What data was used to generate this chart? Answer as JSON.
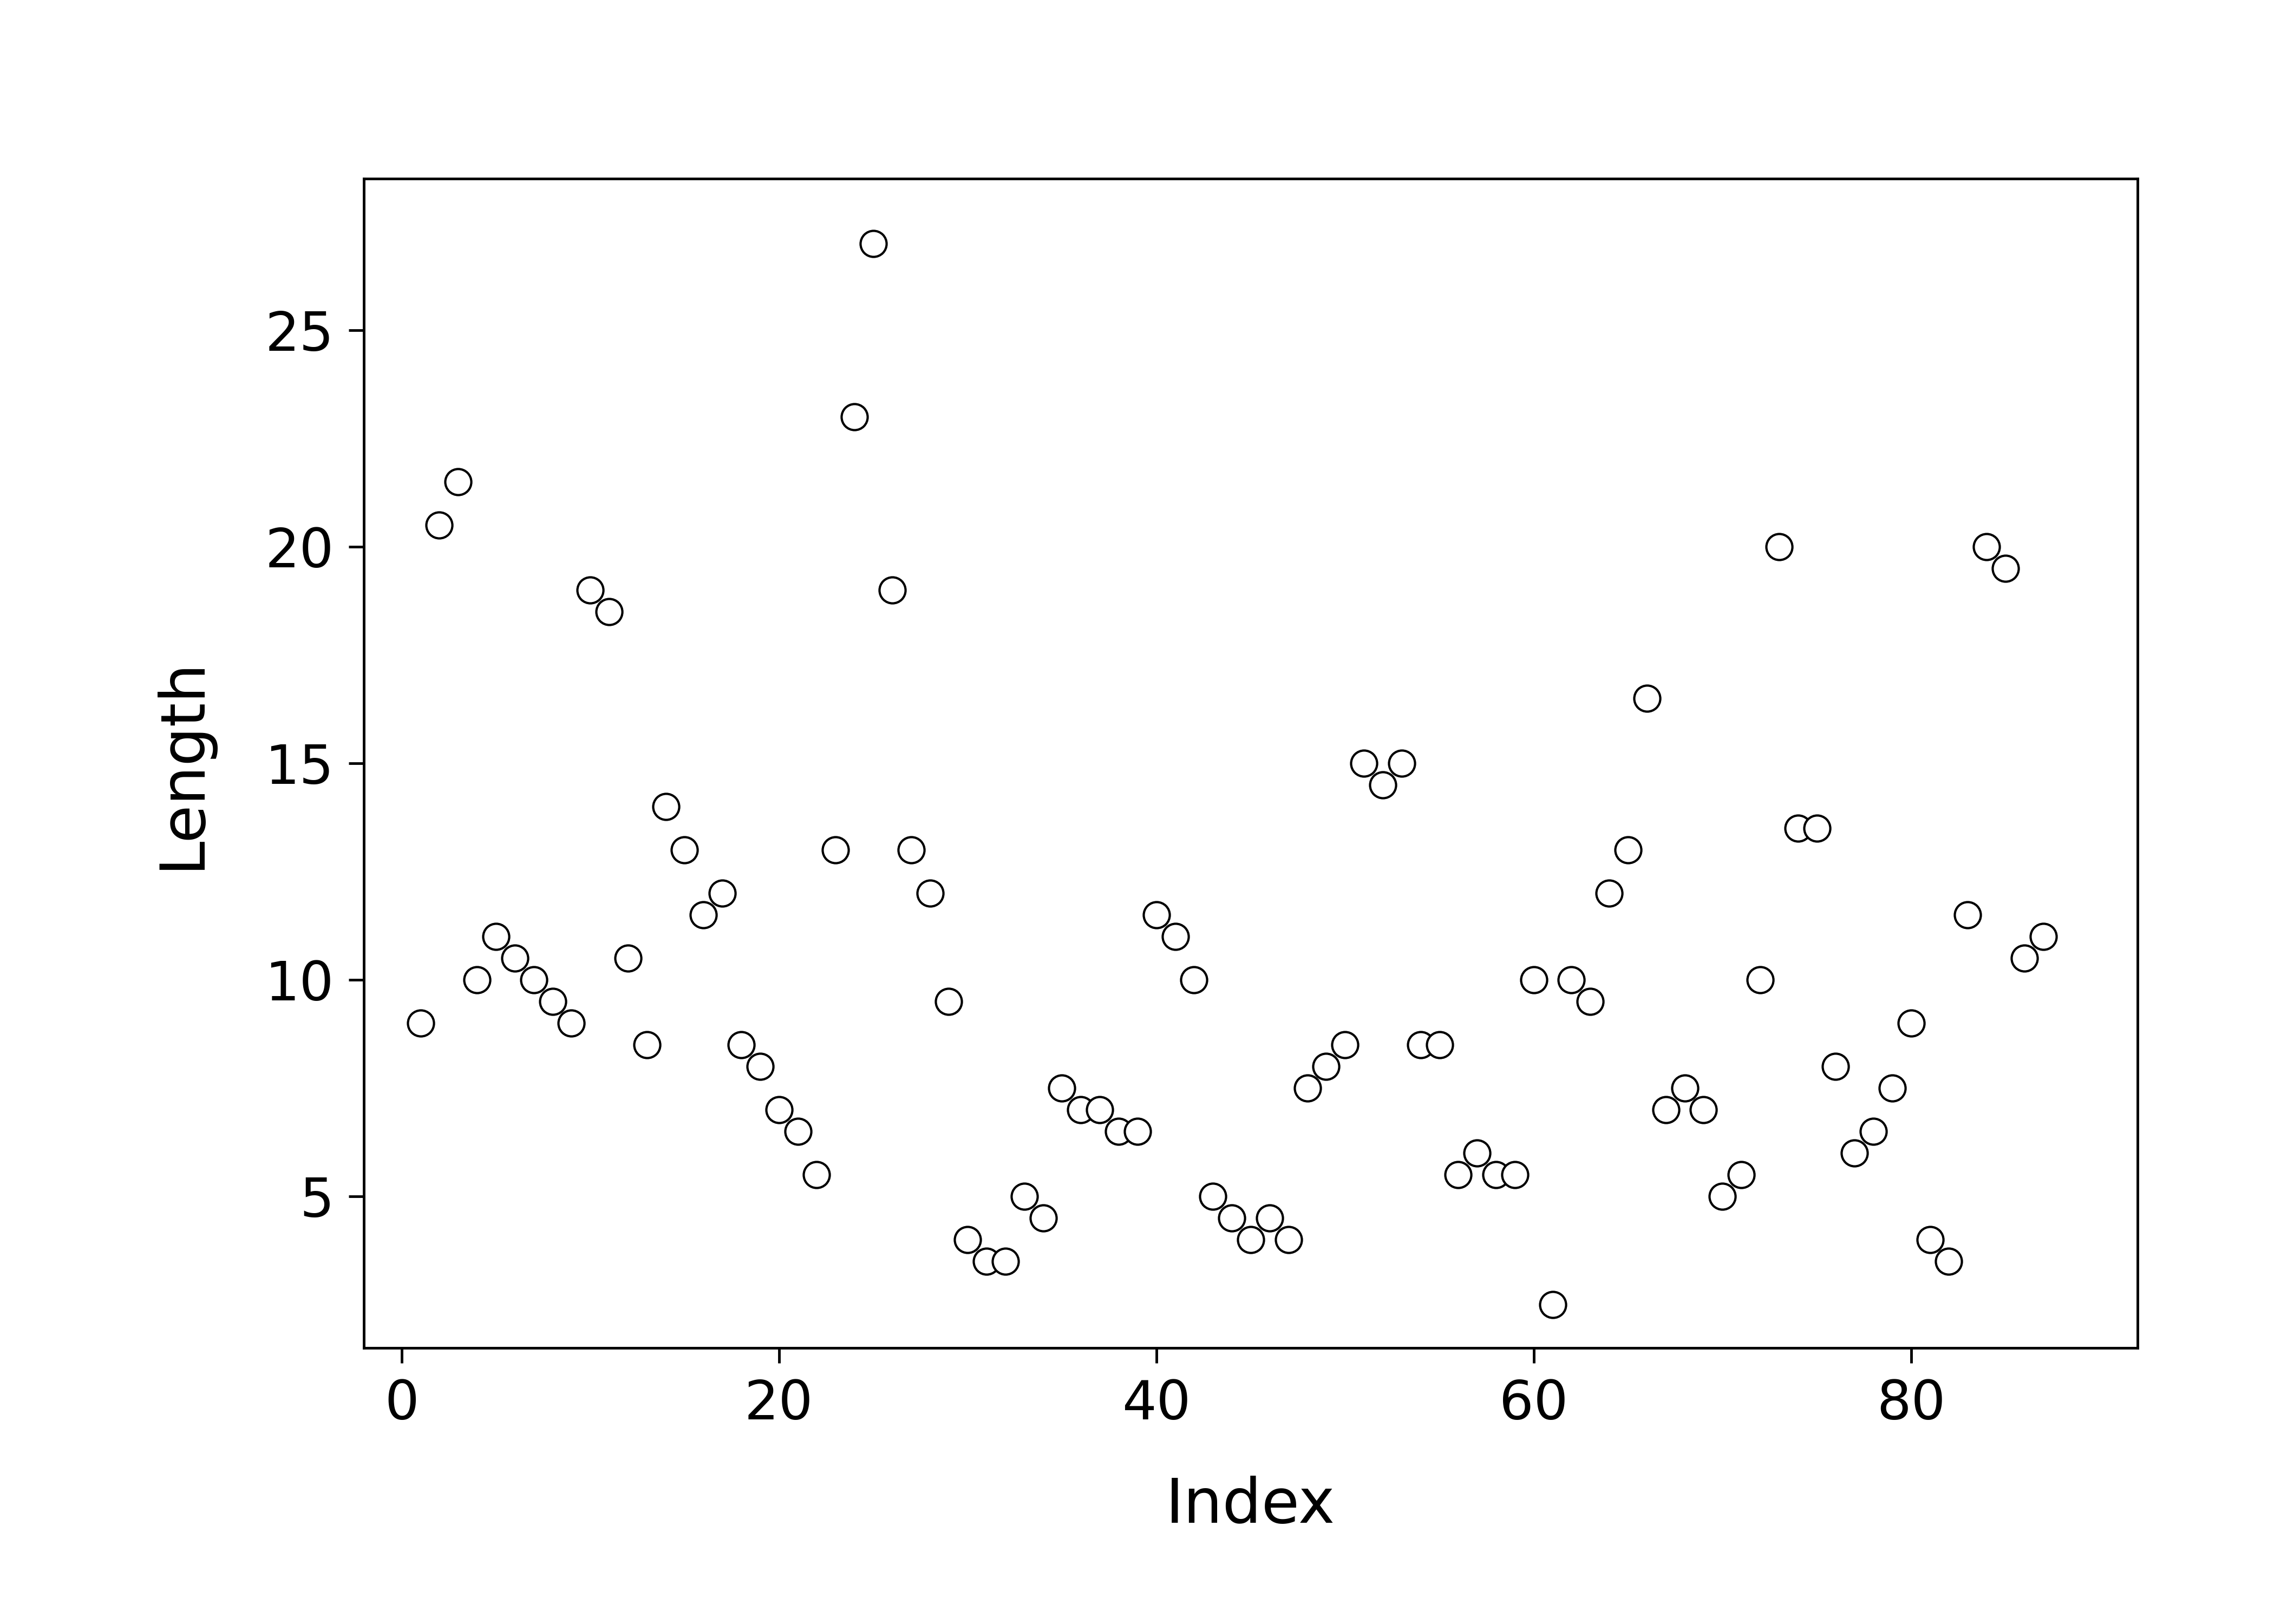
{
  "x_values": [
    1,
    2,
    3,
    4,
    5,
    6,
    7,
    8,
    9,
    10,
    11,
    12,
    13,
    14,
    15,
    16,
    17,
    18,
    19,
    20,
    21,
    22,
    23,
    24,
    25,
    26,
    27,
    28,
    29,
    30,
    31,
    32,
    33,
    34,
    35,
    36,
    37,
    38,
    39,
    40,
    41,
    42,
    43,
    44,
    45,
    46,
    47,
    48,
    49,
    50,
    51,
    52,
    53,
    54,
    55,
    56,
    57,
    58,
    59,
    60,
    61,
    62,
    63,
    64,
    65,
    66,
    67,
    68,
    69,
    70,
    71,
    72,
    73,
    74,
    75,
    76,
    77,
    78,
    79,
    80,
    81,
    82,
    83,
    84,
    85,
    86,
    87
  ],
  "y_values": [
    9.0,
    20.5,
    21.5,
    10.0,
    11.0,
    10.5,
    10.0,
    9.5,
    9.0,
    19.0,
    18.5,
    10.5,
    8.5,
    14.0,
    13.0,
    11.5,
    12.0,
    8.5,
    8.0,
    7.0,
    6.5,
    5.5,
    13.0,
    23.0,
    27.0,
    19.0,
    13.0,
    12.0,
    9.5,
    4.0,
    3.5,
    3.5,
    5.0,
    4.5,
    7.5,
    7.0,
    7.0,
    6.5,
    6.5,
    11.5,
    11.0,
    10.0,
    5.0,
    4.5,
    4.0,
    4.5,
    4.0,
    7.5,
    8.0,
    8.5,
    15.0,
    14.5,
    15.0,
    8.5,
    8.5,
    5.5,
    6.0,
    5.5,
    5.5,
    10.0,
    2.5,
    10.0,
    9.5,
    12.0,
    13.0,
    16.5,
    7.0,
    7.5,
    7.0,
    5.0,
    5.5,
    10.0,
    20.0,
    13.5,
    13.5,
    8.0,
    6.0,
    6.5,
    7.5,
    9.0,
    4.0,
    3.5,
    11.5,
    20.0,
    19.5,
    10.5,
    11.0
  ],
  "xlabel": "Index",
  "ylabel": "Length",
  "xlim": [
    -2,
    92
  ],
  "ylim": [
    1.5,
    28.5
  ],
  "xticks": [
    0,
    20,
    40,
    60,
    80
  ],
  "yticks": [
    5,
    10,
    15,
    20,
    25
  ],
  "marker_color": "white",
  "marker_edgecolor": "black",
  "background_color": "white"
}
